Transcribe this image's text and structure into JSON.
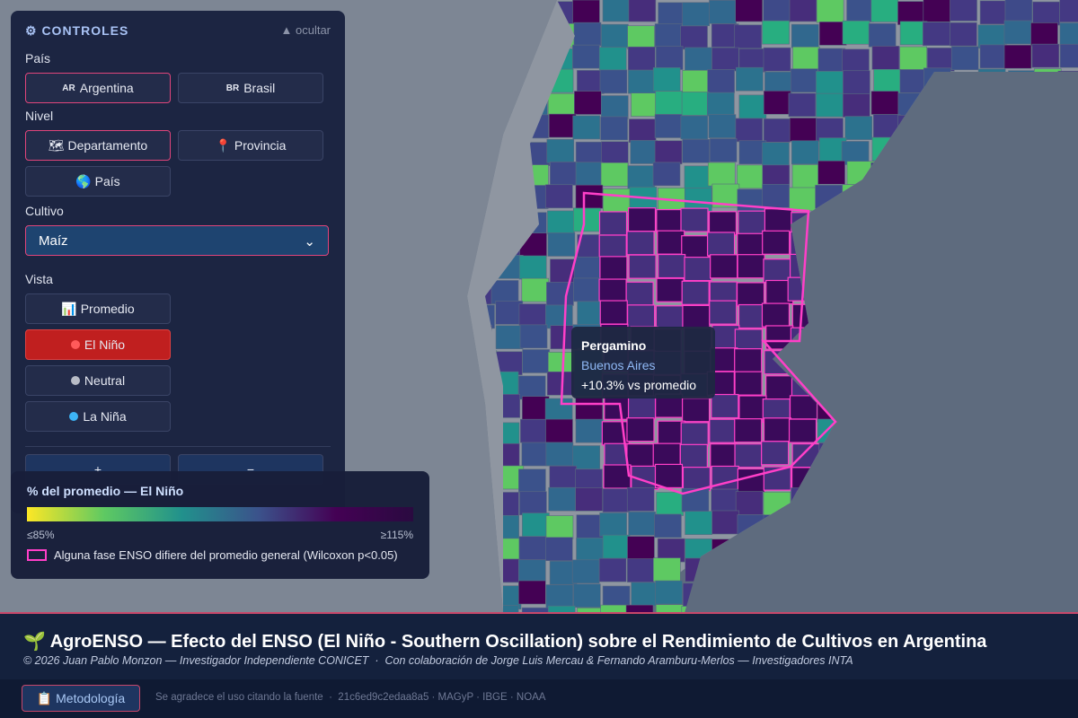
{
  "controls": {
    "title": "⚙ CONTROLES",
    "hide": "▲ ocultar",
    "country": {
      "label": "País",
      "options": [
        {
          "icon": "AR",
          "label": "Argentina"
        },
        {
          "icon": "BR",
          "label": "Brasil"
        }
      ]
    },
    "level": {
      "label": "Nivel",
      "options": [
        "🗺 Departamento",
        "📍 Provincia",
        "🌎 País"
      ]
    },
    "crop": {
      "label": "Cultivo",
      "selected": "Maíz"
    },
    "view": {
      "label": "Vista",
      "options": [
        "📊 Promedio",
        "El Niño",
        "Neutral",
        "La Niña"
      ]
    },
    "zoom": [
      "+",
      "−"
    ]
  },
  "legend": {
    "title": "% del promedio — El Niño",
    "min": "≤85%",
    "max": "≥115%",
    "note": "Alguna fase ENSO difiere del promedio general (Wilcoxon p<0.05)"
  },
  "tooltip": {
    "name": "Pergamino",
    "province": "Buenos Aires",
    "value": "+10.3% vs promedio"
  },
  "footer": {
    "title": "🌱 AgroENSO — Efecto del ENSO (El Niño - Southern Oscillation) sobre el Rendimiento de Cultivos en Argentina",
    "credits": "© 2026 Juan Pablo Monzon — Investigador Independiente CONICET  ·  Con colaboración de Jorge Luis Mercau & Fernando Aramburu-Merlos — Investigadores INTA",
    "button": "📋 Metodología",
    "info": "Se agradece el uso citando la fuente  ·  21c6ed9c2edaa8a5 · MAGyP · IBGE · NOAA"
  }
}
